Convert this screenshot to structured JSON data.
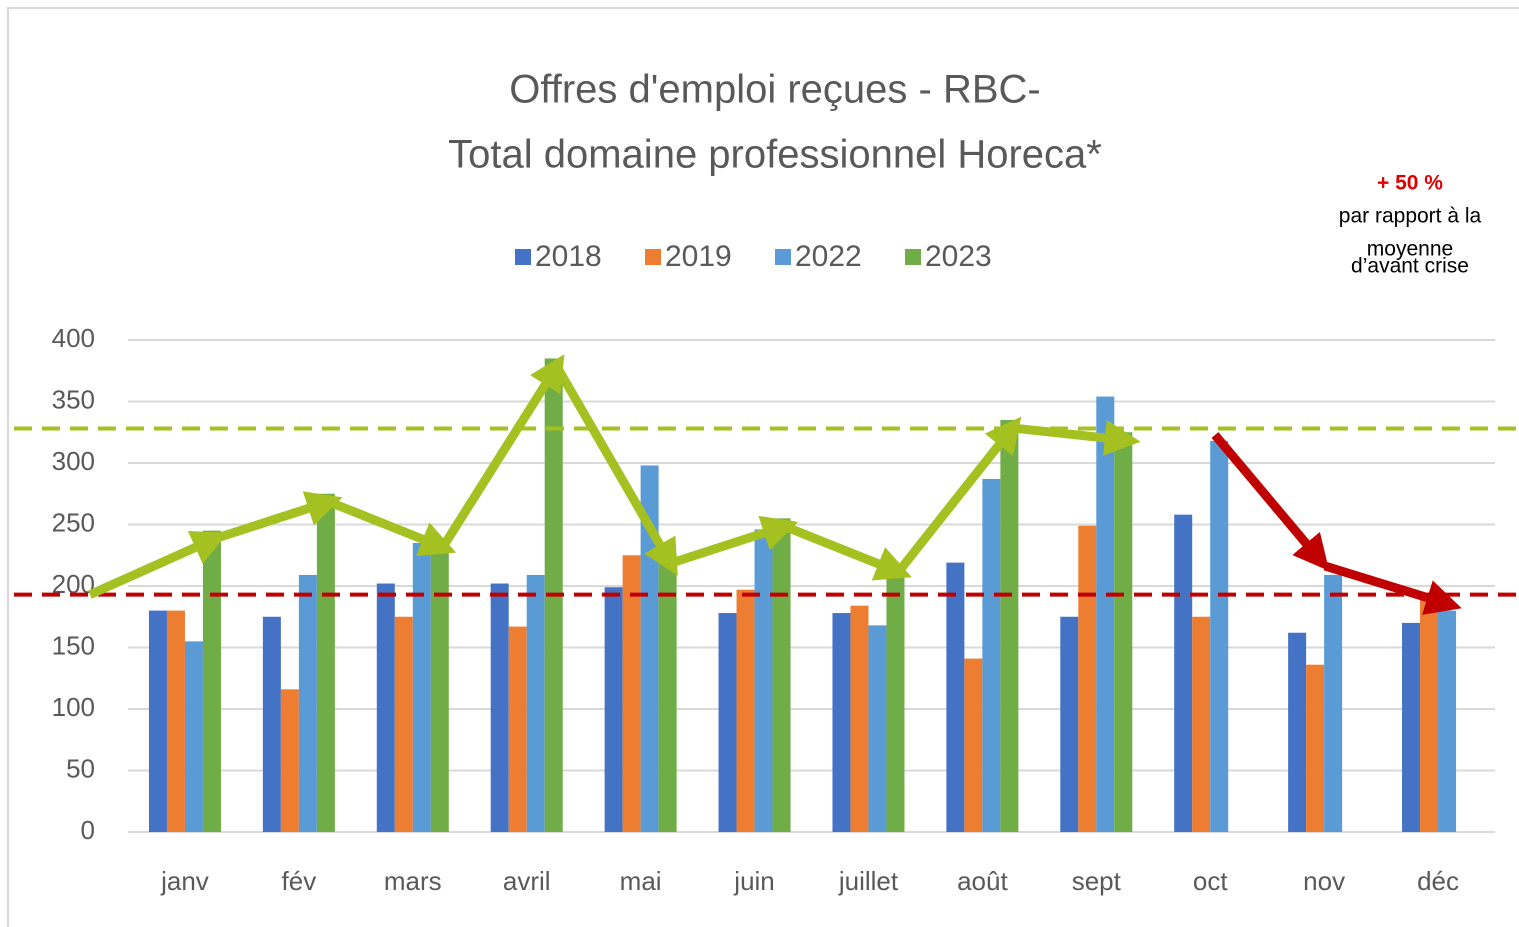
{
  "chart_data": {
    "type": "bar",
    "title": [
      "Offres d'emploi reçues - RBC-",
      "Total domaine professionnel Horeca*"
    ],
    "categories": [
      "janv",
      "fév",
      "mars",
      "avril",
      "mai",
      "juin",
      "juillet",
      "août",
      "sept",
      "oct",
      "nov",
      "déc"
    ],
    "series": [
      {
        "name": "2018",
        "color": "#4472c4",
        "values": [
          180,
          175,
          202,
          202,
          199,
          178,
          178,
          219,
          175,
          258,
          162,
          170
        ]
      },
      {
        "name": "2019",
        "color": "#ed7d31",
        "values": [
          180,
          116,
          175,
          167,
          225,
          197,
          184,
          141,
          249,
          175,
          136,
          190
        ]
      },
      {
        "name": "2022",
        "color": "#5b9bd5",
        "values": [
          155,
          209,
          235,
          209,
          298,
          246,
          168,
          287,
          354,
          318,
          209,
          180
        ]
      },
      {
        "name": "2023",
        "color": "#70ad47",
        "values": [
          245,
          275,
          238,
          385,
          225,
          255,
          218,
          335,
          325,
          null,
          null,
          null
        ]
      }
    ],
    "ylim": [
      0,
      400
    ],
    "yticks": [
      0,
      50,
      100,
      150,
      200,
      250,
      300,
      350,
      400
    ],
    "grid": true,
    "legend": "top",
    "reference_lines": [
      {
        "value": 328,
        "color": "#a5c021"
      },
      {
        "value": 193,
        "color": "#c00000"
      }
    ],
    "annotation": {
      "highlight": "+ 50 %",
      "lines": [
        "par rapport à la",
        "moyenne",
        "d’avant crise"
      ]
    }
  }
}
